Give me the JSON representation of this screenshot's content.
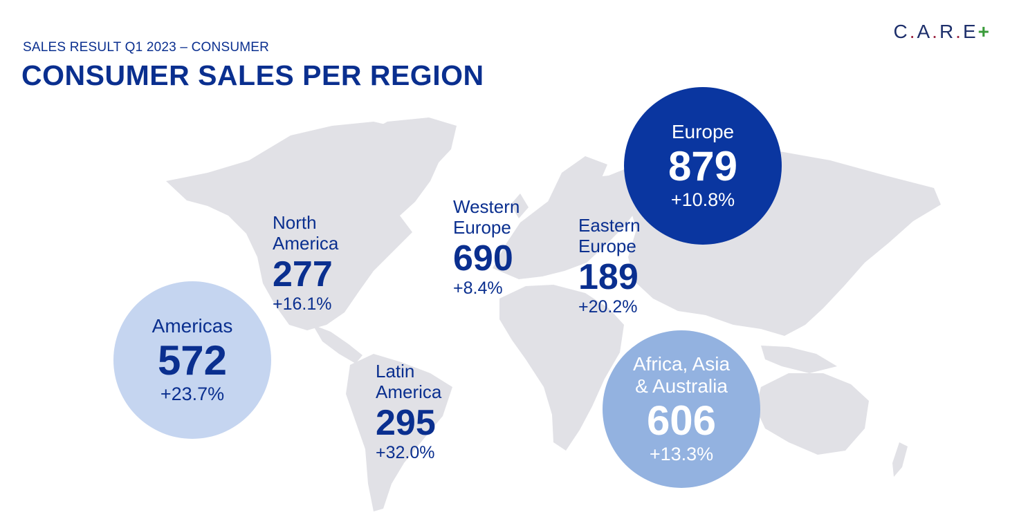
{
  "header": {
    "subtitle": "SALES RESULT Q1 2023 – CONSUMER",
    "title": "CONSUMER SALES PER REGION"
  },
  "logo": {
    "c": "C",
    "a": "A",
    "r": "R",
    "e": "E",
    "dot": ".",
    "plus": "+"
  },
  "regions": {
    "north_america": {
      "name_line1": "North",
      "name_line2": "America",
      "value": "277",
      "growth": "+16.1%"
    },
    "western_europe": {
      "name_line1": "Western",
      "name_line2": "Europe",
      "value": "690",
      "growth": "+8.4%"
    },
    "eastern_europe": {
      "name_line1": "Eastern",
      "name_line2": "Europe",
      "value": "189",
      "growth": "+20.2%"
    },
    "latin_america": {
      "name_line1": "Latin",
      "name_line2": "America",
      "value": "295",
      "growth": "+32.0%"
    }
  },
  "circles": {
    "americas": {
      "name": "Americas",
      "value": "572",
      "growth": "+23.7%"
    },
    "europe": {
      "name": "Europe",
      "value": "879",
      "growth": "+10.8%"
    },
    "africa_asia_australia": {
      "name_line1": "Africa, Asia",
      "name_line2": "& Australia",
      "value": "606",
      "growth": "+13.3%"
    }
  },
  "colors": {
    "primary_blue": "#0a2f8f",
    "europe_circle": "#0a36a0",
    "americas_circle": "#c5d5f0",
    "aaa_circle": "#93b2e0",
    "map_land": "#e1e1e6"
  }
}
